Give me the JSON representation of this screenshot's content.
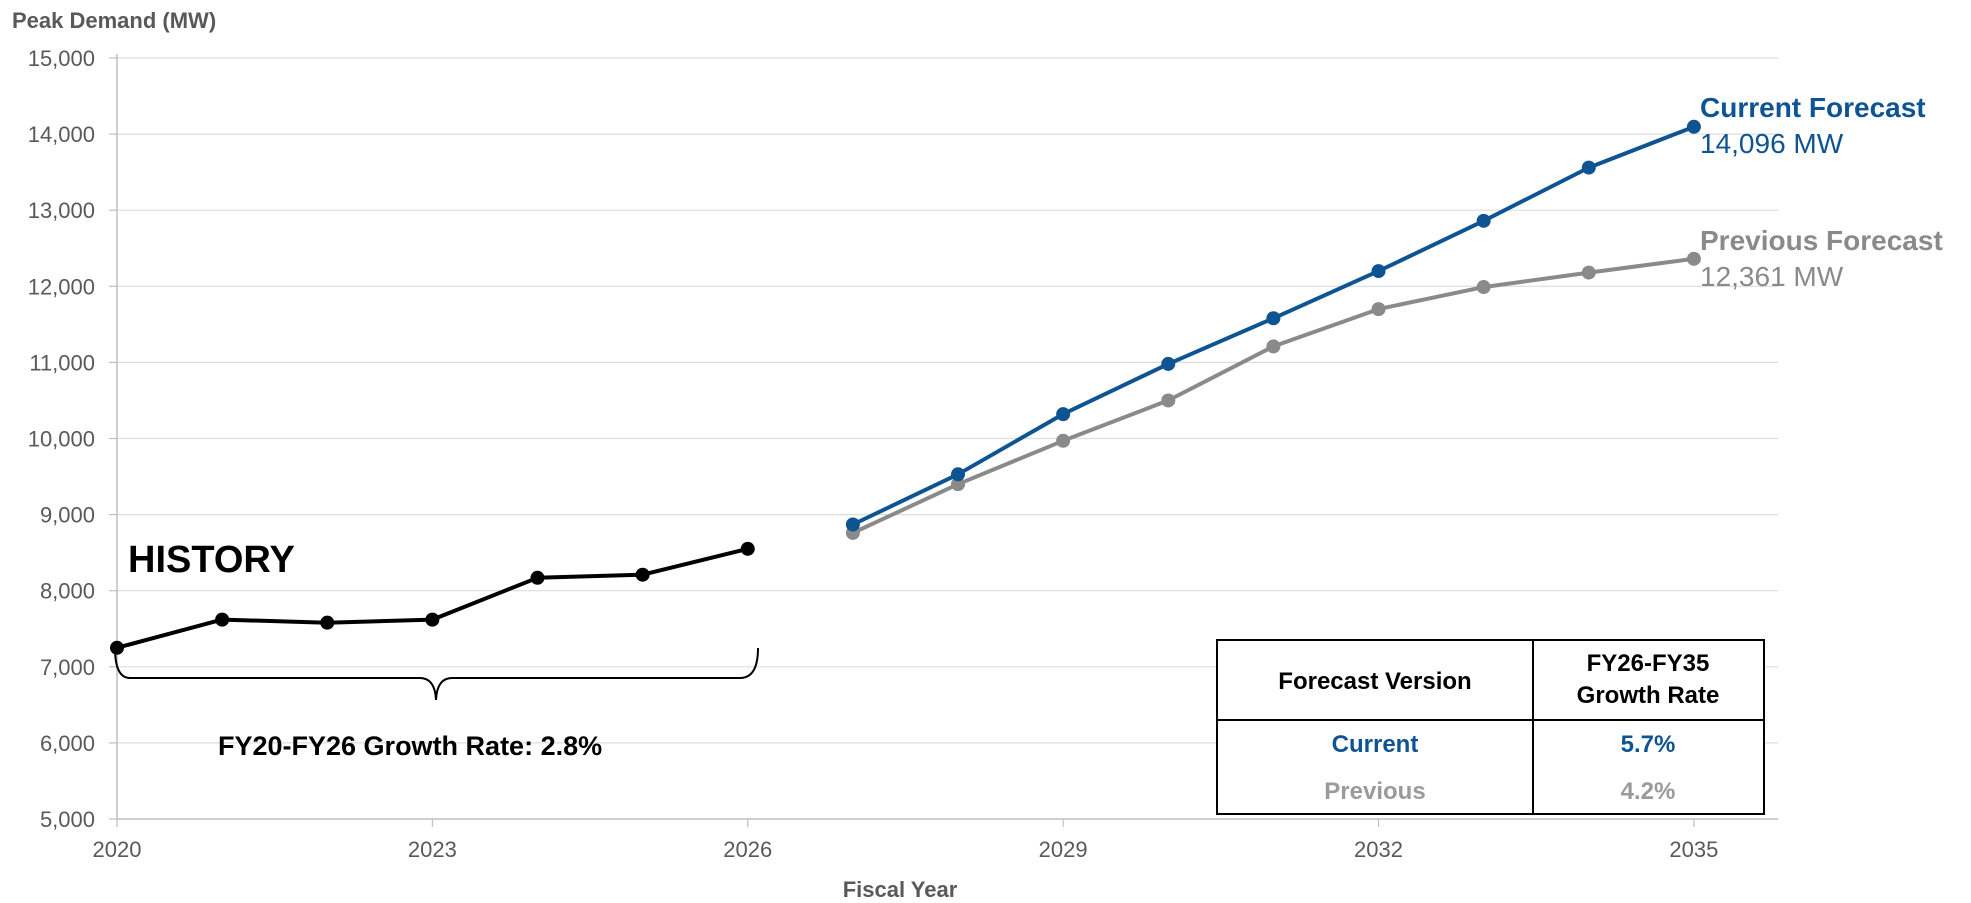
{
  "chart_data": {
    "type": "line",
    "ylabel": "Peak Demand (MW)",
    "xlabel": "Fiscal Year",
    "ylim": [
      5000,
      15000
    ],
    "yticks": [
      5000,
      6000,
      7000,
      8000,
      9000,
      10000,
      11000,
      12000,
      13000,
      14000,
      15000
    ],
    "ytick_labels": [
      "5,000",
      "6,000",
      "7,000",
      "8,000",
      "9,000",
      "10,000",
      "11,000",
      "12,000",
      "13,000",
      "14,000",
      "15,000"
    ],
    "xlim": [
      2020,
      2035.8
    ],
    "xticks": [
      2020,
      2023,
      2026,
      2029,
      2032,
      2035
    ],
    "xtick_labels": [
      "2020",
      "2023",
      "2026",
      "2029",
      "2032",
      "2035"
    ],
    "grid": true,
    "series": [
      {
        "key": "history",
        "color": "#000000",
        "x": [
          2020,
          2021,
          2022,
          2023,
          2024,
          2025,
          2026
        ],
        "values": [
          7250,
          7620,
          7580,
          7620,
          8170,
          8210,
          8550
        ]
      },
      {
        "key": "current",
        "name": "Current Forecast",
        "end_label": "14,096 MW",
        "color": "#0E5493",
        "x": [
          2027,
          2028,
          2029,
          2030,
          2031,
          2032,
          2033,
          2034,
          2035
        ],
        "values": [
          8870,
          9530,
          10320,
          10980,
          11580,
          12200,
          12860,
          13560,
          14096
        ]
      },
      {
        "key": "previous",
        "name": "Previous Forecast",
        "end_label": "12,361 MW",
        "color": "#8A8A8A",
        "x": [
          2027,
          2028,
          2029,
          2030,
          2031,
          2032,
          2033,
          2034,
          2035
        ],
        "values": [
          8760,
          9400,
          9970,
          10500,
          11210,
          11700,
          11990,
          12180,
          12361
        ]
      }
    ],
    "annotations": {
      "history_label": "HISTORY",
      "history_growth": "FY20-FY26 Growth Rate: 2.8%"
    },
    "table": {
      "headers": [
        "Forecast Version",
        "FY26-FY35",
        "Growth Rate"
      ],
      "rows": [
        {
          "version": "Current",
          "rate": "5.7%",
          "color": "#0E5493"
        },
        {
          "version": "Previous",
          "rate": "4.2%",
          "color": "#9A9A9A"
        }
      ]
    }
  }
}
